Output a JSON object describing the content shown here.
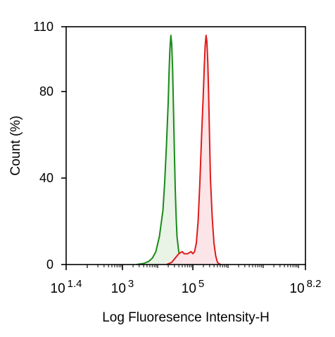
{
  "chart_data": {
    "type": "area",
    "title": "",
    "xlabel": "Log Fluoresence Intensity-H",
    "ylabel": "Count  (%)",
    "x_scale": "log",
    "xlim": [
      25.1,
      158489319
    ],
    "ylim": [
      0,
      110
    ],
    "x_ticks": [
      {
        "value": 25.1,
        "base": "10",
        "exp": "1.4"
      },
      {
        "value": 1000,
        "base": "10",
        "exp": "3"
      },
      {
        "value": 100000,
        "base": "10",
        "exp": "5"
      },
      {
        "value": 158489319,
        "base": "10",
        "exp": "8.2"
      }
    ],
    "y_ticks": [
      0,
      40,
      80,
      110
    ],
    "grid": false,
    "legend": "none",
    "series": [
      {
        "color": "#1a8a1a",
        "fill": "#e9f3e6",
        "x": [
          2500,
          3980,
          5620,
          7080,
          8910,
          11220,
          14130,
          15850,
          17780,
          19950,
          21130,
          22390,
          23710,
          25120,
          26610,
          28180,
          29850,
          31620,
          33500,
          35480,
          39810,
          44670,
          50120,
          56230,
          63100,
          70790
        ],
        "y": [
          0,
          0.5,
          1.5,
          3,
          6,
          13,
          25,
          38,
          55,
          75,
          90,
          100,
          106,
          102,
          90,
          72,
          52,
          35,
          22,
          13,
          6,
          3,
          1.5,
          0.5,
          0.2,
          0
        ]
      },
      {
        "color": "#e01a1a",
        "fill": "#fbe5e8",
        "x": [
          17780,
          25120,
          31620,
          39810,
          44670,
          50120,
          56230,
          63100,
          70790,
          79430,
          89130,
          100000,
          112200,
          125900,
          141300,
          158500,
          177800,
          199500,
          211300,
          223900,
          237100,
          251200,
          266100,
          281800,
          298500,
          316200,
          354800,
          398100,
          446700,
          501200,
          562300,
          631000
        ],
        "y": [
          0,
          1,
          3,
          5,
          5.5,
          6,
          5,
          5,
          5,
          5.5,
          6,
          5,
          6,
          10,
          20,
          38,
          60,
          80,
          92,
          101,
          106,
          103,
          93,
          78,
          58,
          40,
          22,
          10,
          4,
          1,
          0.3,
          0
        ]
      }
    ]
  }
}
